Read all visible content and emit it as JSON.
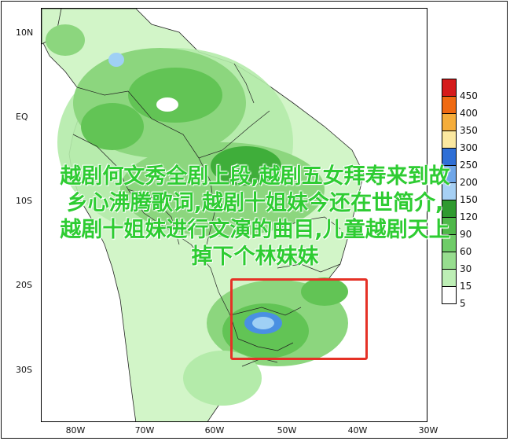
{
  "map": {
    "lat_labels": [
      "10N",
      "EQ",
      "10S",
      "20S",
      "30S"
    ],
    "lon_labels": [
      "80W",
      "70W",
      "60W",
      "50W",
      "40W",
      "30W"
    ],
    "colors": {
      "land_light": "#d2f5c8",
      "green_1": "#b4ebaa",
      "green_2": "#8cd67e",
      "green_3": "#62c455",
      "green_4": "#3fae3a",
      "blue_hi": "#4a90e2",
      "blue_light": "#9fd0f5"
    }
  },
  "legend": {
    "labels": [
      "450",
      "400",
      "350",
      "300",
      "250",
      "200",
      "150",
      "120",
      "90",
      "60",
      "30",
      "15",
      "5"
    ],
    "colors": [
      "#d51b1b",
      "#ef6a12",
      "#f5ad3b",
      "#fbe8a0",
      "#2f6fd6",
      "#6fa6e8",
      "#a6d0f4",
      "#2f9a2f",
      "#4fb84a",
      "#6fcc68",
      "#97dd8f",
      "#bdeeb5",
      "#ffffff"
    ]
  },
  "overlay": {
    "line1": "越剧何文秀全剧上段,越剧五女拜寿来到故",
    "line2": "乡心沸腾歌词,越剧十姐妹今还在世简介,",
    "line3": "越剧十姐妹进行文演的曲目,儿童越剧天上",
    "line4": "掉下个林妹妹"
  },
  "highlight": {
    "color": "#e53126"
  }
}
